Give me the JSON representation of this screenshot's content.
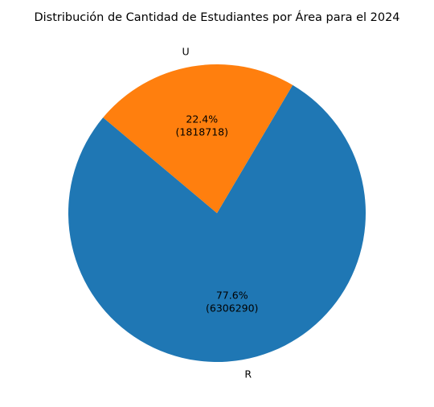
{
  "chart_data": {
    "type": "pie",
    "title": "Distribución de Cantidad de Estudiantes por Área para el 2024",
    "categories": [
      "R",
      "U"
    ],
    "values": [
      6306290,
      1818718
    ],
    "percent_labels": [
      "77.6%",
      "22.4%"
    ],
    "value_labels": [
      "(6306290)",
      "(1818718)"
    ],
    "colors": [
      "#1f77b4",
      "#ff7f0e"
    ],
    "start_angle_deg": 140,
    "legend": "none"
  }
}
